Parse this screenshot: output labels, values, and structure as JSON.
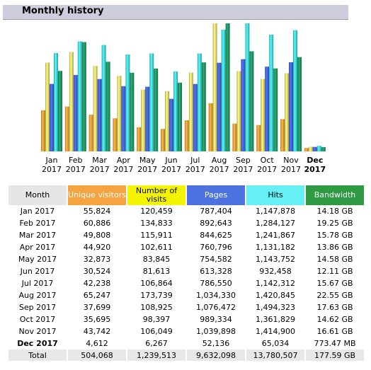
{
  "header": {
    "title": "Monthly history"
  },
  "colors": {
    "unique_visitors": "#f4a338",
    "visits": "#f0e070",
    "pages": "#4466dd",
    "hits": "#44dddd",
    "bandwidth": "#229966"
  },
  "chart_data": {
    "type": "bar",
    "categories": [
      {
        "month": "Jan",
        "year": "2017",
        "current": false
      },
      {
        "month": "Feb",
        "year": "2017",
        "current": false
      },
      {
        "month": "Mar",
        "year": "2017",
        "current": false
      },
      {
        "month": "Apr",
        "year": "2017",
        "current": false
      },
      {
        "month": "May",
        "year": "2017",
        "current": false
      },
      {
        "month": "Jun",
        "year": "2017",
        "current": false
      },
      {
        "month": "Jul",
        "year": "2017",
        "current": false
      },
      {
        "month": "Aug",
        "year": "2017",
        "current": false
      },
      {
        "month": "Sep",
        "year": "2017",
        "current": false
      },
      {
        "month": "Oct",
        "year": "2017",
        "current": false
      },
      {
        "month": "Nov",
        "year": "2017",
        "current": false
      },
      {
        "month": "Dec",
        "year": "2017",
        "current": true
      }
    ],
    "series": [
      {
        "key": "unique_visitors",
        "values": [
          55824,
          60886,
          49808,
          44920,
          32873,
          30524,
          42238,
          65247,
          37699,
          35695,
          43742,
          4612
        ]
      },
      {
        "key": "visits",
        "values": [
          120459,
          134833,
          115911,
          102611,
          83845,
          81613,
          106864,
          173739,
          108925,
          98397,
          106049,
          6267
        ]
      },
      {
        "key": "pages",
        "values": [
          787404,
          892643,
          844625,
          760796,
          754582,
          613328,
          786550,
          1034330,
          1076472,
          989334,
          1039898,
          52136
        ]
      },
      {
        "key": "hits",
        "values": [
          1147878,
          1284127,
          1241867,
          1131182,
          1143752,
          932458,
          1142312,
          1420845,
          1494323,
          1361829,
          1414900,
          65034
        ]
      },
      {
        "key": "bandwidth_gb",
        "values": [
          14.18,
          19.25,
          15.78,
          13.86,
          14.58,
          12.11,
          15.67,
          22.55,
          17.63,
          14.62,
          16.61,
          0.755
        ]
      }
    ]
  },
  "table": {
    "headers": {
      "month": "Month",
      "unique_visitors": "Unique visitors",
      "visits": "Number of visits",
      "pages": "Pages",
      "hits": "Hits",
      "bandwidth": "Bandwidth"
    },
    "rows": [
      {
        "month": "Jan 2017",
        "uv": "55,824",
        "visits": "120,459",
        "pages": "787,404",
        "hits": "1,147,878",
        "bw": "14.18 GB",
        "current": false
      },
      {
        "month": "Feb 2017",
        "uv": "60,886",
        "visits": "134,833",
        "pages": "892,643",
        "hits": "1,284,127",
        "bw": "19.25 GB",
        "current": false
      },
      {
        "month": "Mar 2017",
        "uv": "49,808",
        "visits": "115,911",
        "pages": "844,625",
        "hits": "1,241,867",
        "bw": "15.78 GB",
        "current": false
      },
      {
        "month": "Apr 2017",
        "uv": "44,920",
        "visits": "102,611",
        "pages": "760,796",
        "hits": "1,131,182",
        "bw": "13.86 GB",
        "current": false
      },
      {
        "month": "May 2017",
        "uv": "32,873",
        "visits": "83,845",
        "pages": "754,582",
        "hits": "1,143,752",
        "bw": "14.58 GB",
        "current": false
      },
      {
        "month": "Jun 2017",
        "uv": "30,524",
        "visits": "81,613",
        "pages": "613,328",
        "hits": "932,458",
        "bw": "12.11 GB",
        "current": false
      },
      {
        "month": "Jul 2017",
        "uv": "42,238",
        "visits": "106,864",
        "pages": "786,550",
        "hits": "1,142,312",
        "bw": "15.67 GB",
        "current": false
      },
      {
        "month": "Aug 2017",
        "uv": "65,247",
        "visits": "173,739",
        "pages": "1,034,330",
        "hits": "1,420,845",
        "bw": "22.55 GB",
        "current": false
      },
      {
        "month": "Sep 2017",
        "uv": "37,699",
        "visits": "108,925",
        "pages": "1,076,472",
        "hits": "1,494,323",
        "bw": "17.63 GB",
        "current": false
      },
      {
        "month": "Oct 2017",
        "uv": "35,695",
        "visits": "98,397",
        "pages": "989,334",
        "hits": "1,361,829",
        "bw": "14.62 GB",
        "current": false
      },
      {
        "month": "Nov 2017",
        "uv": "43,742",
        "visits": "106,049",
        "pages": "1,039,898",
        "hits": "1,414,900",
        "bw": "16.61 GB",
        "current": false
      },
      {
        "month": "Dec 2017",
        "uv": "4,612",
        "visits": "6,267",
        "pages": "52,136",
        "hits": "65,034",
        "bw": "773.47 MB",
        "current": true
      }
    ],
    "total": {
      "month": "Total",
      "uv": "504,068",
      "visits": "1,239,513",
      "pages": "9,632,098",
      "hits": "13,780,507",
      "bw": "177.59 GB"
    }
  }
}
